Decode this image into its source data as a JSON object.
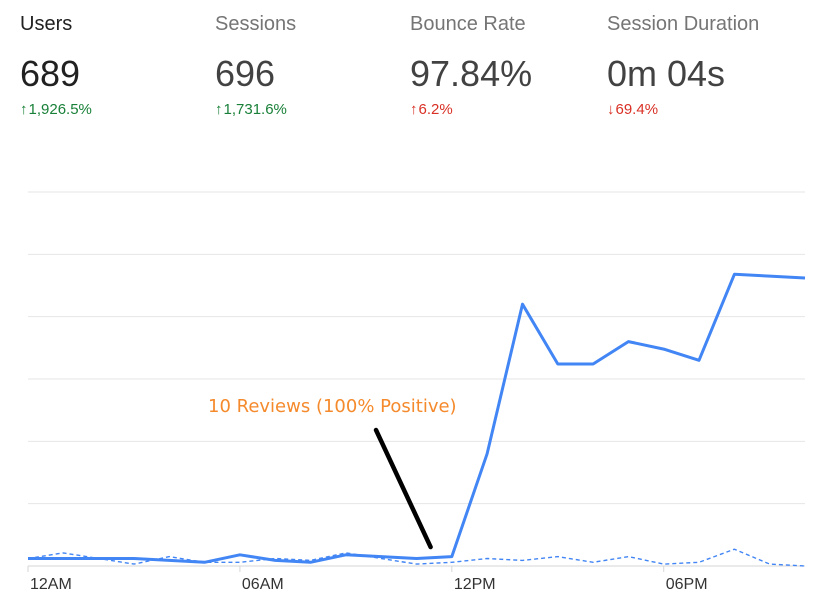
{
  "metrics": [
    {
      "label": "Users",
      "value": "689",
      "change": "1,926.5%",
      "direction": "up",
      "color": "#188038",
      "active": true
    },
    {
      "label": "Sessions",
      "value": "696",
      "change": "1,731.6%",
      "direction": "up",
      "color": "#188038",
      "active": false
    },
    {
      "label": "Bounce Rate",
      "value": "97.84%",
      "change": "6.2%",
      "direction": "up",
      "color": "#d93025",
      "active": false
    },
    {
      "label": "Session Duration",
      "value": "0m 04s",
      "change": "69.4%",
      "direction": "down",
      "color": "#d93025",
      "active": false
    }
  ],
  "chart_data": {
    "type": "line",
    "x": [
      "12AM",
      "1AM",
      "2AM",
      "3AM",
      "4AM",
      "5AM",
      "6AM",
      "7AM",
      "8AM",
      "9AM",
      "10AM",
      "11AM",
      "12PM",
      "1PM",
      "2PM",
      "3PM",
      "4PM",
      "5PM",
      "6PM",
      "7PM",
      "8PM",
      "9PM",
      "10PM"
    ],
    "tick_labels": [
      {
        "index": 0,
        "label": "12AM"
      },
      {
        "index": 6,
        "label": "06AM"
      },
      {
        "index": 12,
        "label": "12PM"
      },
      {
        "index": 18,
        "label": "06PM"
      }
    ],
    "series": [
      {
        "name": "",
        "style": "solid",
        "color": "#4285f4",
        "values": [
          2,
          2,
          2,
          2,
          1.5,
          1,
          3,
          1.5,
          1,
          3,
          2.5,
          2,
          2.5,
          30,
          70,
          54,
          54,
          60,
          58,
          55,
          78,
          77.5,
          77
        ]
      },
      {
        "name": "",
        "style": "dashed",
        "color": "#4285f4",
        "values": [
          2,
          3.5,
          2,
          0.5,
          2.5,
          1,
          1,
          2,
          1.5,
          3.5,
          2,
          0.5,
          1,
          2,
          1.5,
          2.5,
          1,
          2.5,
          0.5,
          1,
          4.5,
          0.5,
          0
        ]
      }
    ],
    "ylim": [
      0,
      100
    ],
    "gridlines": 7,
    "grid": true,
    "annotation": {
      "text": "10 Reviews (100% Positive)",
      "color": "#f58a2c",
      "arrow_color": "#000000",
      "points_to_index": 11.4,
      "points_to_value": 4
    }
  }
}
